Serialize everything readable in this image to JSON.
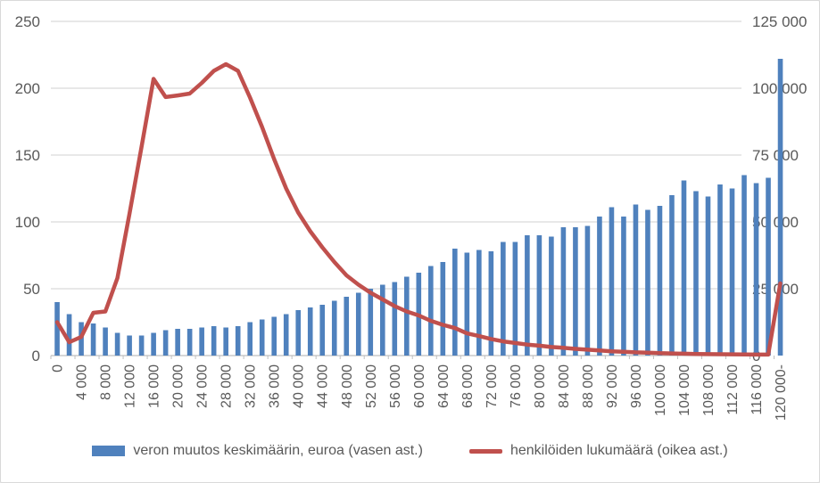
{
  "colors": {
    "bar": "#4f81bd",
    "line": "#c0504d",
    "grid": "#d9d9d9",
    "axis_line": "#bfbfbf",
    "tick": "#bfbfbf",
    "text": "#595959",
    "background": "#ffffff",
    "frame_border": "#d9d9d9"
  },
  "left_axis": {
    "ticks": [
      "0",
      "50",
      "100",
      "150",
      "200",
      "250"
    ],
    "min": 0,
    "max": 250
  },
  "right_axis": {
    "ticks": [
      "0",
      "25 000",
      "50 000",
      "75 000",
      "100 000",
      "125 000"
    ],
    "min": 0,
    "max": 125000
  },
  "x_axis": {
    "tick_labels": [
      "0",
      "4 000",
      "8 000",
      "12 000",
      "16 000",
      "20 000",
      "24 000",
      "28 000",
      "32 000",
      "36 000",
      "40 000",
      "44 000",
      "48 000",
      "52 000",
      "56 000",
      "60 000",
      "64 000",
      "68 000",
      "72 000",
      "76 000",
      "80 000",
      "84 000",
      "88 000",
      "92 000",
      "96 000",
      "100 000",
      "104 000",
      "108 000",
      "112 000",
      "116 000",
      "120 000-"
    ],
    "label_every": 2
  },
  "legend": [
    {
      "series": "bars",
      "marker": "rect",
      "label": "veron muutos keskimäärin, euroa (vasen ast.)"
    },
    {
      "series": "line",
      "marker": "line",
      "label": "henkilöiden lukumäärä (oikea ast.)"
    }
  ],
  "chart_data": {
    "type": "combo",
    "title": "",
    "grid": true,
    "legend_position": "bottom",
    "left_ylim": [
      0,
      250
    ],
    "right_ylim": [
      0,
      125000
    ],
    "categories": [
      "0",
      "2 000",
      "4 000",
      "6 000",
      "8 000",
      "10 000",
      "12 000",
      "14 000",
      "16 000",
      "18 000",
      "20 000",
      "22 000",
      "24 000",
      "26 000",
      "28 000",
      "30 000",
      "32 000",
      "34 000",
      "36 000",
      "38 000",
      "40 000",
      "42 000",
      "44 000",
      "46 000",
      "48 000",
      "50 000",
      "52 000",
      "54 000",
      "56 000",
      "58 000",
      "60 000",
      "62 000",
      "64 000",
      "66 000",
      "68 000",
      "70 000",
      "72 000",
      "74 000",
      "76 000",
      "78 000",
      "80 000",
      "82 000",
      "84 000",
      "86 000",
      "88 000",
      "90 000",
      "92 000",
      "94 000",
      "96 000",
      "98 000",
      "100 000",
      "102 000",
      "104 000",
      "106 000",
      "108 000",
      "110 000",
      "112 000",
      "114 000",
      "116 000",
      "118 000",
      "120 000-"
    ],
    "series": [
      {
        "name": "veron muutos keskimäärin, euroa (vasen ast.)",
        "type": "bar",
        "axis": "left",
        "values": [
          40,
          31,
          25,
          24,
          21,
          17,
          15,
          15,
          17,
          19,
          20,
          20,
          21,
          22,
          21,
          22,
          25,
          27,
          29,
          31,
          34,
          36,
          38,
          41,
          44,
          47,
          50,
          53,
          55,
          59,
          62,
          67,
          70,
          80,
          77,
          79,
          78,
          85,
          85,
          90,
          90,
          89,
          96,
          96,
          97,
          104,
          111,
          104,
          113,
          109,
          112,
          120,
          131,
          123,
          119,
          128,
          125,
          135,
          129,
          133,
          222
        ]
      },
      {
        "name": "henkilöiden lukumäärä (oikea ast.)",
        "type": "line",
        "axis": "right",
        "values": [
          12500,
          5000,
          7000,
          16000,
          16500,
          29000,
          53000,
          78000,
          103500,
          96700,
          97300,
          98000,
          102000,
          106500,
          109000,
          106500,
          96500,
          85500,
          73500,
          62500,
          53500,
          46500,
          40500,
          35000,
          30000,
          26500,
          23500,
          21000,
          18500,
          16500,
          15000,
          13000,
          11500,
          10300,
          8300,
          7300,
          6200,
          5300,
          4700,
          4100,
          3700,
          3200,
          2900,
          2500,
          2200,
          1900,
          1600,
          1400,
          1200,
          1100,
          900,
          800,
          700,
          600,
          550,
          500,
          450,
          400,
          380,
          350,
          27000
        ]
      }
    ]
  }
}
